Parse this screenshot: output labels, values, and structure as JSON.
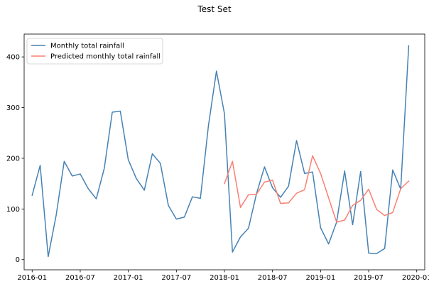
{
  "chart_data": {
    "type": "line",
    "title": "Test Set",
    "xlabel": "",
    "ylabel": "",
    "x_type": "date",
    "xlim": [
      "2015-12-01",
      "2020-02-01"
    ],
    "ylim": [
      -20,
      445
    ],
    "grid": false,
    "legend_position": "top-left",
    "x_tick_labels": [
      "2016-01",
      "2016-07",
      "2017-01",
      "2017-07",
      "2018-01",
      "2018-07",
      "2019-01",
      "2019-07",
      "2020-01"
    ],
    "y_tick_labels": [
      "0",
      "100",
      "200",
      "300",
      "400"
    ],
    "y_ticks": [
      0,
      100,
      200,
      300,
      400
    ],
    "series": [
      {
        "name": "Monthly total rainfall",
        "color": "#4682b4",
        "x": [
          "2016-01",
          "2016-02",
          "2016-03",
          "2016-04",
          "2016-05",
          "2016-06",
          "2016-07",
          "2016-08",
          "2016-09",
          "2016-10",
          "2016-11",
          "2016-12",
          "2017-01",
          "2017-02",
          "2017-03",
          "2017-04",
          "2017-05",
          "2017-06",
          "2017-07",
          "2017-08",
          "2017-09",
          "2017-10",
          "2017-11",
          "2017-12",
          "2018-01",
          "2018-02",
          "2018-03",
          "2018-04",
          "2018-05",
          "2018-06",
          "2018-07",
          "2018-08",
          "2018-09",
          "2018-10",
          "2018-11",
          "2018-12",
          "2019-01",
          "2019-02",
          "2019-03",
          "2019-04",
          "2019-05",
          "2019-06",
          "2019-07",
          "2019-08",
          "2019-09",
          "2019-10",
          "2019-11",
          "2019-12"
        ],
        "values": [
          127,
          186,
          6,
          88,
          194,
          165,
          169,
          140,
          120,
          180,
          291,
          293,
          197,
          160,
          137,
          209,
          190,
          107,
          80,
          84,
          124,
          121,
          264,
          372,
          288,
          15,
          45,
          62,
          130,
          183,
          142,
          123,
          145,
          235,
          170,
          173,
          63,
          31,
          74,
          175,
          69,
          174,
          13,
          12,
          22,
          177,
          139,
          422
        ]
      },
      {
        "name": "Predicted monthly total rainfall",
        "color": "#fa8072",
        "x": [
          "2018-01",
          "2018-02",
          "2018-03",
          "2018-04",
          "2018-05",
          "2018-06",
          "2018-07",
          "2018-08",
          "2018-09",
          "2018-10",
          "2018-11",
          "2018-12",
          "2019-01",
          "2019-02",
          "2019-03",
          "2019-04",
          "2019-05",
          "2019-06",
          "2019-07",
          "2019-08",
          "2019-09",
          "2019-10",
          "2019-11",
          "2019-12"
        ],
        "values": [
          150,
          194,
          103,
          128,
          129,
          153,
          157,
          111,
          112,
          131,
          138,
          205,
          170,
          122,
          74,
          78,
          107,
          117,
          139,
          99,
          87,
          93,
          140,
          155
        ]
      }
    ]
  }
}
